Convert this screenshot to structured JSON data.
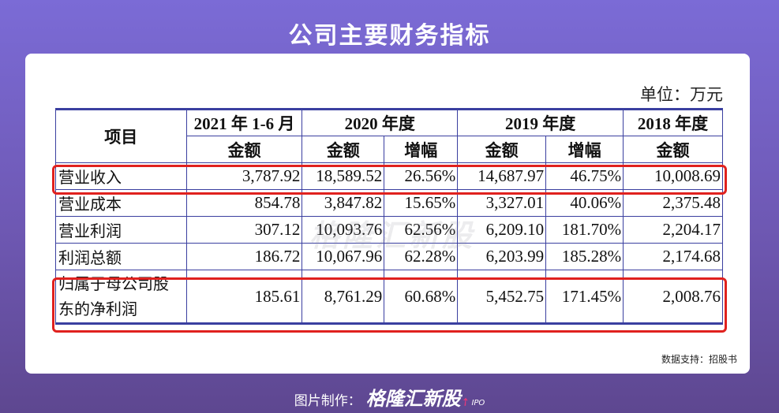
{
  "title": "公司主要财务指标",
  "unit_label": "单位：万元",
  "table": {
    "item_header": "项目",
    "period_headers": [
      "2021 年 1-6 月",
      "2020 年度",
      "2019 年度",
      "2018 年度"
    ],
    "sub_headers": [
      "金额",
      "金额",
      "增幅",
      "金额",
      "增幅",
      "金额"
    ],
    "rows": [
      {
        "label": "营业收入",
        "label_lines": [
          "营业收入"
        ],
        "values": [
          "3,787.92",
          "18,589.52",
          "26.56%",
          "14,687.97",
          "46.75%",
          "10,008.69"
        ],
        "highlighted": true
      },
      {
        "label": "营业成本",
        "label_lines": [
          "营业成本"
        ],
        "values": [
          "854.78",
          "3,847.82",
          "15.65%",
          "3,327.01",
          "40.06%",
          "2,375.48"
        ],
        "highlighted": false
      },
      {
        "label": "营业利润",
        "label_lines": [
          "营业利润"
        ],
        "values": [
          "307.12",
          "10,093.76",
          "62.56%",
          "6,209.10",
          "181.70%",
          "2,204.17"
        ],
        "highlighted": false
      },
      {
        "label": "利润总额",
        "label_lines": [
          "利润总额"
        ],
        "values": [
          "186.72",
          "10,067.96",
          "62.28%",
          "6,203.99",
          "185.28%",
          "2,174.68"
        ],
        "highlighted": false
      },
      {
        "label": "归属于母公司股东的净利润",
        "label_lines": [
          "归属于母公司股",
          "东的净利润"
        ],
        "values": [
          "185.61",
          "8,761.29",
          "60.68%",
          "5,452.75",
          "171.45%",
          "2,008.76"
        ],
        "highlighted": true
      }
    ]
  },
  "source_note": "数据支持：招股书",
  "watermark": "格隆汇新股",
  "footer": {
    "prefix": "图片制作：",
    "brand": "格隆汇新股",
    "suffix": "IPO"
  },
  "colors": {
    "highlight_border": "#e0211e",
    "table_border": "#3a3fa0",
    "background_top": "#7b6bd6",
    "background_bottom": "#5e4790"
  }
}
